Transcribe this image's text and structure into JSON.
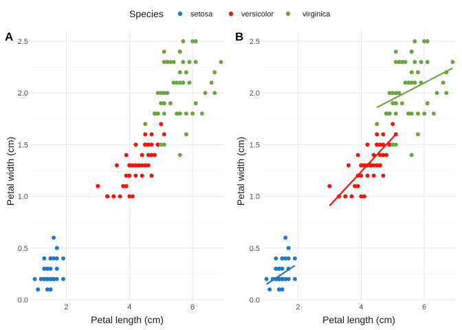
{
  "legend": {
    "title": "Species",
    "position": "top",
    "items": [
      {
        "label": "setosa",
        "color": "#1f78c8"
      },
      {
        "label": "versicolor",
        "color": "#f0140a"
      },
      {
        "label": "virginica",
        "color": "#6aa53e"
      }
    ]
  },
  "chart_data": [
    {
      "type": "scatter",
      "tag": "A",
      "xlabel": "Petal length (cm)",
      "ylabel": "Petal width (cm)",
      "xlim": [
        0.9,
        7.0
      ],
      "ylim": [
        0,
        2.6
      ],
      "xticks": [
        2,
        4,
        6
      ],
      "yticks": [
        0.0,
        0.5,
        1.0,
        1.5,
        2.0,
        2.5
      ],
      "ytick_labels": [
        "0.0",
        "0.5",
        "1.0",
        "1.5",
        "2.0",
        "2.5"
      ],
      "grid": true,
      "fit_lines": false,
      "series": [
        {
          "name": "setosa",
          "points": [
            [
              1.4,
              0.2
            ],
            [
              1.4,
              0.2
            ],
            [
              1.3,
              0.2
            ],
            [
              1.5,
              0.2
            ],
            [
              1.4,
              0.2
            ],
            [
              1.7,
              0.4
            ],
            [
              1.4,
              0.3
            ],
            [
              1.5,
              0.2
            ],
            [
              1.4,
              0.2
            ],
            [
              1.5,
              0.1
            ],
            [
              1.5,
              0.2
            ],
            [
              1.6,
              0.2
            ],
            [
              1.4,
              0.1
            ],
            [
              1.1,
              0.1
            ],
            [
              1.2,
              0.2
            ],
            [
              1.5,
              0.4
            ],
            [
              1.3,
              0.4
            ],
            [
              1.4,
              0.3
            ],
            [
              1.7,
              0.3
            ],
            [
              1.5,
              0.3
            ],
            [
              1.7,
              0.2
            ],
            [
              1.5,
              0.4
            ],
            [
              1.0,
              0.2
            ],
            [
              1.7,
              0.5
            ],
            [
              1.9,
              0.2
            ],
            [
              1.6,
              0.2
            ],
            [
              1.6,
              0.4
            ],
            [
              1.5,
              0.2
            ],
            [
              1.4,
              0.2
            ],
            [
              1.6,
              0.2
            ],
            [
              1.6,
              0.2
            ],
            [
              1.5,
              0.4
            ],
            [
              1.5,
              0.1
            ],
            [
              1.4,
              0.2
            ],
            [
              1.5,
              0.2
            ],
            [
              1.2,
              0.2
            ],
            [
              1.3,
              0.2
            ],
            [
              1.4,
              0.1
            ],
            [
              1.3,
              0.2
            ],
            [
              1.5,
              0.2
            ],
            [
              1.3,
              0.3
            ],
            [
              1.3,
              0.3
            ],
            [
              1.3,
              0.2
            ],
            [
              1.6,
              0.6
            ],
            [
              1.9,
              0.4
            ],
            [
              1.4,
              0.3
            ],
            [
              1.6,
              0.2
            ],
            [
              1.4,
              0.2
            ],
            [
              1.5,
              0.2
            ],
            [
              1.4,
              0.2
            ]
          ]
        },
        {
          "name": "versicolor",
          "points": [
            [
              4.7,
              1.4
            ],
            [
              4.5,
              1.5
            ],
            [
              4.9,
              1.5
            ],
            [
              4.0,
              1.3
            ],
            [
              4.6,
              1.5
            ],
            [
              4.5,
              1.3
            ],
            [
              4.7,
              1.6
            ],
            [
              3.3,
              1.0
            ],
            [
              4.6,
              1.3
            ],
            [
              3.9,
              1.4
            ],
            [
              3.5,
              1.0
            ],
            [
              4.2,
              1.5
            ],
            [
              4.0,
              1.0
            ],
            [
              4.7,
              1.4
            ],
            [
              3.6,
              1.3
            ],
            [
              4.4,
              1.4
            ],
            [
              4.5,
              1.5
            ],
            [
              4.1,
              1.0
            ],
            [
              4.5,
              1.5
            ],
            [
              3.9,
              1.1
            ],
            [
              4.8,
              1.8
            ],
            [
              4.0,
              1.3
            ],
            [
              4.9,
              1.5
            ],
            [
              4.7,
              1.2
            ],
            [
              4.3,
              1.3
            ],
            [
              4.4,
              1.4
            ],
            [
              4.8,
              1.4
            ],
            [
              5.0,
              1.7
            ],
            [
              4.5,
              1.5
            ],
            [
              3.5,
              1.0
            ],
            [
              3.8,
              1.1
            ],
            [
              3.7,
              1.0
            ],
            [
              3.9,
              1.2
            ],
            [
              5.1,
              1.6
            ],
            [
              4.5,
              1.5
            ],
            [
              4.5,
              1.6
            ],
            [
              4.7,
              1.5
            ],
            [
              4.4,
              1.3
            ],
            [
              4.1,
              1.3
            ],
            [
              4.0,
              1.3
            ],
            [
              4.4,
              1.2
            ],
            [
              4.6,
              1.4
            ],
            [
              4.0,
              1.2
            ],
            [
              3.3,
              1.0
            ],
            [
              4.2,
              1.3
            ],
            [
              4.2,
              1.2
            ],
            [
              4.2,
              1.3
            ],
            [
              4.3,
              1.3
            ],
            [
              3.0,
              1.1
            ],
            [
              4.1,
              1.3
            ]
          ]
        },
        {
          "name": "virginica",
          "points": [
            [
              6.0,
              2.5
            ],
            [
              5.1,
              1.9
            ],
            [
              5.9,
              2.1
            ],
            [
              5.6,
              1.8
            ],
            [
              5.8,
              2.2
            ],
            [
              6.6,
              2.1
            ],
            [
              4.5,
              1.7
            ],
            [
              6.3,
              1.8
            ],
            [
              5.8,
              1.8
            ],
            [
              6.1,
              2.5
            ],
            [
              5.1,
              2.0
            ],
            [
              5.3,
              1.9
            ],
            [
              5.5,
              2.1
            ],
            [
              5.0,
              2.0
            ],
            [
              5.1,
              2.4
            ],
            [
              5.3,
              2.3
            ],
            [
              5.5,
              1.8
            ],
            [
              6.7,
              2.2
            ],
            [
              6.9,
              2.3
            ],
            [
              5.0,
              1.5
            ],
            [
              5.7,
              2.3
            ],
            [
              4.9,
              2.0
            ],
            [
              6.7,
              2.0
            ],
            [
              4.9,
              1.8
            ],
            [
              5.7,
              2.1
            ],
            [
              6.0,
              1.8
            ],
            [
              4.8,
              1.8
            ],
            [
              4.9,
              1.8
            ],
            [
              5.6,
              2.1
            ],
            [
              5.8,
              1.6
            ],
            [
              6.1,
              1.9
            ],
            [
              6.4,
              2.0
            ],
            [
              5.6,
              2.2
            ],
            [
              5.1,
              1.5
            ],
            [
              5.6,
              1.4
            ],
            [
              6.1,
              2.3
            ],
            [
              5.6,
              2.4
            ],
            [
              5.5,
              1.8
            ],
            [
              4.8,
              1.8
            ],
            [
              5.4,
              2.1
            ],
            [
              5.6,
              2.4
            ],
            [
              5.1,
              2.3
            ],
            [
              5.1,
              1.9
            ],
            [
              5.9,
              2.3
            ],
            [
              5.7,
              2.5
            ],
            [
              5.2,
              2.3
            ],
            [
              5.0,
              1.9
            ],
            [
              5.2,
              2.0
            ],
            [
              5.4,
              2.3
            ],
            [
              5.1,
              1.8
            ]
          ]
        }
      ]
    },
    {
      "type": "scatter",
      "tag": "B",
      "xlabel": "Petal length (cm)",
      "ylabel": "Petal width (cm)",
      "xlim": [
        0.9,
        7.0
      ],
      "ylim": [
        0,
        2.6
      ],
      "xticks": [
        2,
        4,
        6
      ],
      "yticks": [
        0.0,
        0.5,
        1.0,
        1.5,
        2.0,
        2.5
      ],
      "ytick_labels": [
        "0.0",
        "0.5",
        "1.0",
        "1.5",
        "2.0",
        "2.5"
      ],
      "grid": true,
      "fit_lines": true,
      "series": [
        {
          "name": "setosa",
          "points": "same as panel A",
          "fit": {
            "x": [
              1.0,
              1.9
            ],
            "y": [
              0.15,
              0.33
            ]
          }
        },
        {
          "name": "versicolor",
          "points": "same as panel A",
          "fit": {
            "x": [
              3.0,
              5.1
            ],
            "y": [
              0.91,
              1.6
            ]
          }
        },
        {
          "name": "virginica",
          "points": "same as panel A",
          "fit": {
            "x": [
              4.5,
              6.9
            ],
            "y": [
              1.86,
              2.24
            ]
          }
        }
      ]
    }
  ]
}
